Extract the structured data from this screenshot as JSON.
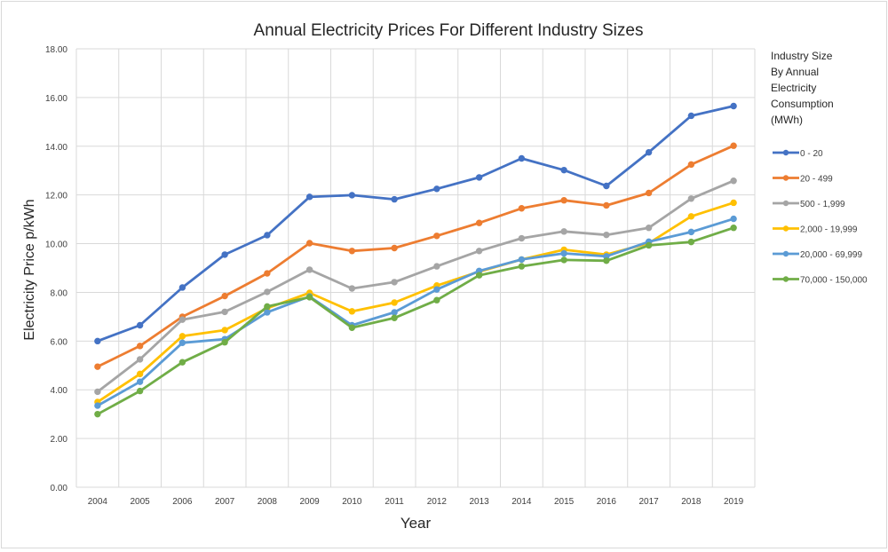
{
  "chart_data": {
    "type": "line",
    "title": "Annual Electricity Prices For Different Industry Sizes",
    "xlabel": "Year",
    "ylabel": "Electricity Price p/kWh",
    "ylim": [
      0,
      18
    ],
    "ytick_labels": [
      "0.00",
      "2.00",
      "4.00",
      "6.00",
      "8.00",
      "10.00",
      "12.00",
      "14.00",
      "16.00",
      "18.00"
    ],
    "grid": true,
    "legend_position": "right",
    "legend_title": [
      "Industry Size",
      "By Annual",
      "Electricity",
      "Consumption",
      "(MWh)"
    ],
    "categories": [
      "2004",
      "2005",
      "2006",
      "2007",
      "2008",
      "2009",
      "2010",
      "2011",
      "2012",
      "2013",
      "2014",
      "2015",
      "2016",
      "2017",
      "2018",
      "2019"
    ],
    "series": [
      {
        "name": "0 - 20",
        "color": "#4472c4",
        "values": [
          6.0,
          6.65,
          8.2,
          9.55,
          10.35,
          11.92,
          11.99,
          11.82,
          12.25,
          12.72,
          13.5,
          13.02,
          12.37,
          13.75,
          15.25,
          15.65
        ]
      },
      {
        "name": "20 - 499",
        "color": "#ed7d31",
        "values": [
          4.95,
          5.8,
          7.0,
          7.85,
          8.78,
          10.02,
          9.7,
          9.82,
          10.32,
          10.85,
          11.45,
          11.78,
          11.57,
          12.08,
          13.25,
          14.02
        ]
      },
      {
        "name": "500 - 1,999",
        "color": "#a5a5a5",
        "values": [
          3.92,
          5.25,
          6.88,
          7.2,
          8.02,
          8.93,
          8.16,
          8.42,
          9.07,
          9.7,
          10.22,
          10.5,
          10.36,
          10.65,
          11.85,
          12.58
        ]
      },
      {
        "name": "2,000 - 19,999",
        "color": "#ffc000",
        "values": [
          3.5,
          4.65,
          6.2,
          6.45,
          7.35,
          7.98,
          7.22,
          7.58,
          8.28,
          8.85,
          9.35,
          9.75,
          9.55,
          10.02,
          11.12,
          11.68
        ]
      },
      {
        "name": "20,000 - 69,999",
        "color": "#5b9bd5",
        "values": [
          3.35,
          4.33,
          5.93,
          6.08,
          7.18,
          7.83,
          6.65,
          7.18,
          8.12,
          8.88,
          9.35,
          9.6,
          9.48,
          10.08,
          10.48,
          11.02
        ]
      },
      {
        "name": "70,000 - 150,000",
        "color": "#70ad47",
        "values": [
          3.0,
          3.95,
          5.13,
          5.95,
          7.42,
          7.8,
          6.55,
          6.95,
          7.68,
          8.7,
          9.07,
          9.33,
          9.3,
          9.93,
          10.07,
          10.65
        ]
      }
    ]
  }
}
